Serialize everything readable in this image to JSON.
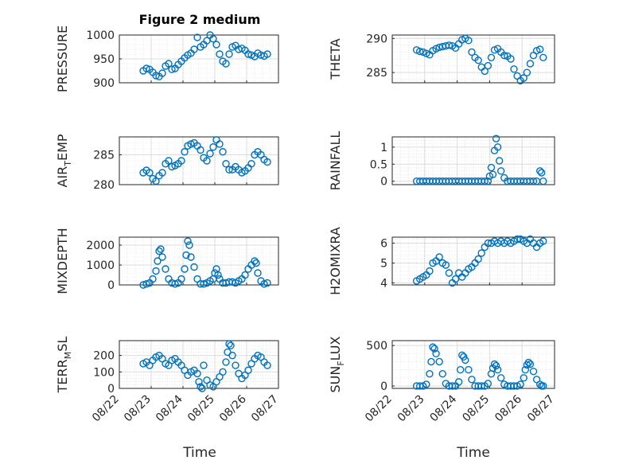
{
  "figure": {
    "title": "Figure 2 medium"
  },
  "chart_data": [
    {
      "type": "scatter",
      "panel": "top-left",
      "ylabel": "PRESSURE",
      "ylim": [
        900,
        1000
      ],
      "yticks": [
        900,
        950,
        1000
      ],
      "xlim": [
        0,
        5
      ],
      "x": [
        0.75,
        0.85,
        0.95,
        1.05,
        1.15,
        1.25,
        1.35,
        1.45,
        1.55,
        1.65,
        1.75,
        1.85,
        1.95,
        2.05,
        2.15,
        2.25,
        2.35,
        2.45,
        2.55,
        2.65,
        2.75,
        2.85,
        2.95,
        3.05,
        3.15,
        3.25,
        3.35,
        3.45,
        3.55,
        3.65,
        3.75,
        3.85,
        3.95,
        4.05,
        4.15,
        4.25,
        4.35,
        4.45,
        4.55,
        4.65
      ],
      "values": [
        925,
        930,
        928,
        922,
        915,
        913,
        920,
        935,
        940,
        928,
        930,
        938,
        945,
        952,
        958,
        962,
        970,
        995,
        975,
        980,
        988,
        1000,
        992,
        980,
        960,
        945,
        940,
        960,
        975,
        978,
        970,
        972,
        968,
        960,
        958,
        955,
        962,
        958,
        956,
        960
      ]
    },
    {
      "type": "scatter",
      "panel": "top-right",
      "ylabel": "THETA",
      "ylim": [
        283.5,
        290.5
      ],
      "yticks": [
        285,
        290
      ],
      "xlim": [
        0,
        5
      ],
      "x": [
        0.75,
        0.85,
        0.95,
        1.05,
        1.15,
        1.25,
        1.35,
        1.45,
        1.55,
        1.65,
        1.75,
        1.85,
        1.95,
        2.05,
        2.15,
        2.25,
        2.35,
        2.45,
        2.55,
        2.65,
        2.75,
        2.85,
        2.95,
        3.05,
        3.15,
        3.25,
        3.35,
        3.45,
        3.55,
        3.65,
        3.75,
        3.85,
        3.95,
        4.05,
        4.15,
        4.25,
        4.35,
        4.45,
        4.55,
        4.65
      ],
      "values": [
        288.3,
        288.1,
        288.0,
        287.8,
        287.6,
        288.2,
        288.5,
        288.7,
        288.8,
        288.9,
        289.0,
        288.9,
        288.6,
        289.2,
        289.8,
        290.0,
        289.7,
        288.0,
        287.2,
        286.8,
        285.8,
        285.2,
        286.0,
        287.2,
        288.3,
        288.5,
        288.0,
        287.5,
        287.4,
        287.0,
        285.5,
        284.5,
        283.8,
        284.2,
        285.0,
        286.3,
        287.5,
        288.2,
        288.4,
        287.2
      ]
    },
    {
      "type": "scatter",
      "panel": "row2-left",
      "ylabel": "AIR_TEMP",
      "ylim": [
        280,
        288
      ],
      "yticks": [
        280,
        285
      ],
      "xlim": [
        0,
        5
      ],
      "x": [
        0.75,
        0.85,
        0.95,
        1.05,
        1.15,
        1.25,
        1.35,
        1.45,
        1.55,
        1.65,
        1.75,
        1.85,
        1.95,
        2.05,
        2.15,
        2.25,
        2.35,
        2.45,
        2.55,
        2.65,
        2.75,
        2.85,
        2.95,
        3.05,
        3.15,
        3.25,
        3.35,
        3.45,
        3.55,
        3.65,
        3.75,
        3.85,
        3.95,
        4.05,
        4.15,
        4.25,
        4.35,
        4.45,
        4.55,
        4.65
      ],
      "values": [
        282.0,
        282.4,
        282.0,
        281.0,
        280.6,
        281.5,
        282.0,
        283.5,
        284.0,
        283.0,
        283.2,
        283.5,
        284.0,
        285.5,
        286.5,
        286.8,
        287.0,
        286.5,
        285.8,
        284.5,
        284.0,
        285.2,
        286.3,
        287.5,
        286.8,
        285.5,
        283.5,
        282.5,
        282.5,
        283.0,
        282.5,
        282.0,
        282.3,
        282.8,
        283.5,
        285.0,
        285.5,
        285.0,
        284.2,
        283.8
      ]
    },
    {
      "type": "scatter",
      "panel": "row2-right",
      "ylabel": "RAINFALL",
      "ylim": [
        -0.1,
        1.3
      ],
      "yticks": [
        0,
        0.5,
        1
      ],
      "xlim": [
        0,
        5
      ],
      "x": [
        0.75,
        0.85,
        0.95,
        1.05,
        1.15,
        1.25,
        1.35,
        1.45,
        1.55,
        1.65,
        1.75,
        1.85,
        1.95,
        2.05,
        2.15,
        2.25,
        2.35,
        2.45,
        2.55,
        2.65,
        2.75,
        2.85,
        2.95,
        3.0,
        3.05,
        3.1,
        3.15,
        3.2,
        3.25,
        3.3,
        3.35,
        3.45,
        3.55,
        3.65,
        3.75,
        3.85,
        3.95,
        4.05,
        4.15,
        4.25,
        4.35,
        4.45,
        4.55,
        4.6,
        4.65
      ],
      "values": [
        0,
        0,
        0,
        0,
        0,
        0,
        0,
        0,
        0,
        0,
        0,
        0,
        0,
        0,
        0,
        0,
        0,
        0,
        0,
        0,
        0,
        0,
        0,
        0.15,
        0.4,
        0.2,
        0.9,
        1.25,
        1.0,
        0.6,
        0.3,
        0.1,
        0,
        0,
        0,
        0,
        0,
        0,
        0,
        0,
        0,
        0,
        0.3,
        0.25,
        0
      ]
    },
    {
      "type": "scatter",
      "panel": "row3-left",
      "ylabel": "MIXDEPTH",
      "ylim": [
        0,
        2400
      ],
      "yticks": [
        0,
        1000,
        2000
      ],
      "xlim": [
        0,
        5
      ],
      "x": [
        0.75,
        0.85,
        0.95,
        1.05,
        1.15,
        1.2,
        1.25,
        1.3,
        1.35,
        1.45,
        1.55,
        1.65,
        1.75,
        1.85,
        1.95,
        2.05,
        2.1,
        2.15,
        2.2,
        2.25,
        2.35,
        2.45,
        2.55,
        2.65,
        2.75,
        2.85,
        2.95,
        3.0,
        3.05,
        3.1,
        3.15,
        3.25,
        3.35,
        3.45,
        3.55,
        3.65,
        3.75,
        3.85,
        3.95,
        4.05,
        4.15,
        4.25,
        4.3,
        4.35,
        4.45,
        4.55,
        4.65
      ],
      "values": [
        0,
        50,
        100,
        300,
        700,
        1200,
        1700,
        1800,
        1400,
        800,
        300,
        100,
        50,
        100,
        300,
        800,
        1500,
        2200,
        2000,
        1400,
        900,
        300,
        50,
        50,
        100,
        200,
        300,
        600,
        800,
        500,
        300,
        100,
        100,
        150,
        150,
        100,
        200,
        300,
        500,
        800,
        1000,
        1200,
        1100,
        600,
        200,
        50,
        100
      ]
    },
    {
      "type": "scatter",
      "panel": "row3-right",
      "ylabel": "H2OMIXRA",
      "ylim": [
        3.9,
        6.3
      ],
      "yticks": [
        4,
        5,
        6
      ],
      "xlim": [
        0,
        5
      ],
      "x": [
        0.75,
        0.85,
        0.95,
        1.05,
        1.15,
        1.25,
        1.35,
        1.45,
        1.55,
        1.65,
        1.75,
        1.85,
        1.95,
        2.05,
        2.15,
        2.25,
        2.35,
        2.45,
        2.55,
        2.65,
        2.75,
        2.85,
        2.95,
        3.05,
        3.15,
        3.25,
        3.35,
        3.45,
        3.55,
        3.65,
        3.75,
        3.85,
        3.95,
        4.05,
        4.15,
        4.25,
        4.35,
        4.45,
        4.55,
        4.65
      ],
      "values": [
        4.1,
        4.2,
        4.3,
        4.4,
        4.6,
        5.0,
        5.1,
        5.3,
        5.0,
        4.9,
        4.5,
        4.0,
        4.2,
        4.5,
        4.3,
        4.5,
        4.7,
        4.8,
        5.0,
        5.2,
        5.5,
        5.8,
        6.0,
        6.0,
        6.1,
        6.0,
        6.1,
        6.0,
        6.1,
        6.0,
        6.1,
        6.2,
        6.2,
        6.1,
        6.0,
        6.2,
        6.0,
        5.8,
        6.0,
        6.1
      ]
    },
    {
      "type": "scatter",
      "panel": "bottom-left",
      "ylabel": "TERR_MSL",
      "ylim": [
        0,
        290
      ],
      "yticks": [
        0,
        100,
        200
      ],
      "xlim": [
        0,
        5
      ],
      "x": [
        0.75,
        0.85,
        0.95,
        1.05,
        1.15,
        1.25,
        1.35,
        1.45,
        1.55,
        1.65,
        1.75,
        1.85,
        1.95,
        2.05,
        2.15,
        2.25,
        2.35,
        2.45,
        2.5,
        2.55,
        2.6,
        2.65,
        2.75,
        2.85,
        2.95,
        3.05,
        3.15,
        3.25,
        3.35,
        3.4,
        3.45,
        3.5,
        3.55,
        3.65,
        3.75,
        3.85,
        3.95,
        4.05,
        4.15,
        4.25,
        4.35,
        4.45,
        4.55,
        4.65
      ],
      "values": [
        150,
        160,
        140,
        170,
        190,
        200,
        180,
        150,
        140,
        170,
        180,
        160,
        140,
        110,
        80,
        100,
        110,
        90,
        40,
        10,
        0,
        140,
        50,
        20,
        10,
        40,
        70,
        100,
        160,
        220,
        270,
        260,
        200,
        140,
        90,
        60,
        80,
        110,
        150,
        180,
        200,
        190,
        160,
        140
      ]
    },
    {
      "type": "scatter",
      "panel": "bottom-right",
      "ylabel": "SUN_FLUX",
      "ylim": [
        -30,
        560
      ],
      "yticks": [
        0,
        500
      ],
      "xlim": [
        0,
        5
      ],
      "x": [
        0.75,
        0.85,
        0.95,
        1.05,
        1.15,
        1.2,
        1.25,
        1.3,
        1.35,
        1.45,
        1.55,
        1.65,
        1.75,
        1.85,
        1.95,
        2.05,
        2.1,
        2.15,
        2.2,
        2.25,
        2.35,
        2.45,
        2.55,
        2.65,
        2.75,
        2.85,
        2.95,
        3.05,
        3.1,
        3.15,
        3.2,
        3.25,
        3.35,
        3.45,
        3.55,
        3.65,
        3.75,
        3.85,
        3.95,
        4.05,
        4.1,
        4.15,
        4.2,
        4.25,
        4.35,
        4.45,
        4.55,
        4.6,
        4.65
      ],
      "values": [
        0,
        0,
        0,
        20,
        150,
        300,
        480,
        460,
        400,
        300,
        150,
        30,
        0,
        0,
        0,
        50,
        200,
        380,
        360,
        320,
        200,
        80,
        0,
        0,
        0,
        0,
        30,
        150,
        220,
        270,
        250,
        200,
        100,
        20,
        0,
        0,
        0,
        0,
        20,
        100,
        200,
        260,
        290,
        270,
        180,
        80,
        20,
        0,
        0
      ]
    }
  ],
  "axes": {
    "xticks": [
      "08/22",
      "08/23",
      "08/24",
      "08/25",
      "08/26",
      "08/27"
    ],
    "xlabel": "Time",
    "color": "#0072BD"
  }
}
